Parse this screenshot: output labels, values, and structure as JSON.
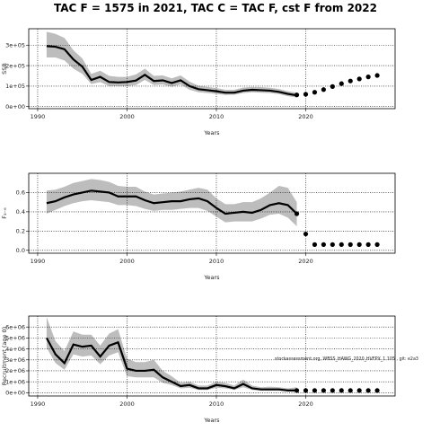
{
  "title": "TAC F = 1575 in 2021, TAC C = TAC F, cst F from 2022",
  "colors": {
    "band": "#bdbdbd",
    "line": "#000000",
    "grid": "#000000",
    "frame": "#000000"
  },
  "chart_data": [
    {
      "type": "line",
      "name": "ssb",
      "xlabel": "Years",
      "ylabel": "SSB",
      "xlim": [
        1989,
        2030
      ],
      "ylim": [
        -10000,
        380000
      ],
      "xticks": [
        1990,
        2000,
        2010,
        2020
      ],
      "xtick_labels": [
        "1990",
        "2000",
        "2010",
        "2020"
      ],
      "yticks": [
        0,
        100000,
        200000,
        300000
      ],
      "ytick_labels": [
        "0e+00",
        "1e+05",
        "2e+05",
        "3e+05"
      ],
      "x": [
        1991,
        1992,
        1993,
        1994,
        1995,
        1996,
        1997,
        1998,
        1999,
        2000,
        2001,
        2002,
        2003,
        2004,
        2005,
        2006,
        2007,
        2008,
        2009,
        2010,
        2011,
        2012,
        2013,
        2014,
        2015,
        2016,
        2017,
        2018,
        2019
      ],
      "values": [
        295000,
        292000,
        280000,
        230000,
        195000,
        130000,
        145000,
        120000,
        118000,
        120000,
        127000,
        155000,
        125000,
        128000,
        115000,
        128000,
        100000,
        85000,
        80000,
        75000,
        68000,
        68000,
        78000,
        82000,
        80000,
        78000,
        72000,
        62000,
        55000
      ],
      "lower": [
        240000,
        240000,
        225000,
        185000,
        160000,
        110000,
        120000,
        100000,
        100000,
        100000,
        105000,
        130000,
        105000,
        108000,
        97000,
        108000,
        82000,
        70000,
        66000,
        62000,
        57000,
        58000,
        66000,
        70000,
        68000,
        66000,
        61000,
        51000,
        44000
      ],
      "upper": [
        365000,
        355000,
        335000,
        275000,
        235000,
        160000,
        175000,
        150000,
        145000,
        145000,
        157000,
        185000,
        150000,
        152000,
        138000,
        152000,
        122000,
        102000,
        96000,
        90000,
        82000,
        82000,
        93000,
        96000,
        95000,
        92000,
        86000,
        75000,
        68000
      ],
      "forecast_x": [
        2019,
        2020,
        2021,
        2022,
        2023,
        2024,
        2025,
        2026,
        2027,
        2028
      ],
      "forecast_values": [
        57000,
        60000,
        70000,
        83000,
        98000,
        112000,
        125000,
        135000,
        145000,
        152000
      ]
    },
    {
      "type": "line",
      "name": "f",
      "xlabel": "Years",
      "ylabel": "F₃₋₆",
      "xlim": [
        1989,
        2030
      ],
      "ylim": [
        -0.03,
        0.8
      ],
      "xticks": [
        1990,
        2000,
        2010,
        2020
      ],
      "xtick_labels": [
        "1990",
        "2000",
        "2010",
        "2020"
      ],
      "yticks": [
        0,
        0.2,
        0.4,
        0.6
      ],
      "ytick_labels": [
        "0.0",
        "0.2",
        "0.4",
        "0.6"
      ],
      "x": [
        1991,
        1992,
        1993,
        1994,
        1995,
        1996,
        1997,
        1998,
        1999,
        2000,
        2001,
        2002,
        2003,
        2004,
        2005,
        2006,
        2007,
        2008,
        2009,
        2010,
        2011,
        2012,
        2013,
        2014,
        2015,
        2016,
        2017,
        2018,
        2019
      ],
      "values": [
        0.49,
        0.51,
        0.55,
        0.58,
        0.6,
        0.62,
        0.61,
        0.6,
        0.56,
        0.56,
        0.56,
        0.52,
        0.49,
        0.5,
        0.51,
        0.51,
        0.53,
        0.54,
        0.51,
        0.44,
        0.38,
        0.39,
        0.4,
        0.39,
        0.42,
        0.47,
        0.49,
        0.47,
        0.38
      ],
      "lower": [
        0.38,
        0.42,
        0.46,
        0.49,
        0.51,
        0.52,
        0.51,
        0.5,
        0.47,
        0.47,
        0.46,
        0.43,
        0.41,
        0.42,
        0.42,
        0.43,
        0.44,
        0.44,
        0.41,
        0.35,
        0.29,
        0.3,
        0.3,
        0.3,
        0.33,
        0.37,
        0.38,
        0.34,
        0.25
      ],
      "upper": [
        0.62,
        0.63,
        0.66,
        0.7,
        0.72,
        0.74,
        0.73,
        0.71,
        0.67,
        0.66,
        0.66,
        0.61,
        0.58,
        0.59,
        0.6,
        0.61,
        0.63,
        0.65,
        0.63,
        0.54,
        0.48,
        0.48,
        0.5,
        0.5,
        0.54,
        0.6,
        0.67,
        0.65,
        0.5
      ],
      "forecast_x": [
        2019,
        2020,
        2021,
        2022,
        2023,
        2024,
        2025,
        2026,
        2027,
        2028
      ],
      "forecast_values": [
        0.38,
        0.17,
        0.06,
        0.06,
        0.06,
        0.06,
        0.06,
        0.06,
        0.06,
        0.06
      ]
    },
    {
      "type": "line",
      "name": "recruitment",
      "xlabel": "Years",
      "ylabel": "Recruitment (age 0)",
      "xlim": [
        1989,
        2030
      ],
      "ylim": [
        -300000,
        7000000
      ],
      "xticks": [
        1990,
        2000,
        2010,
        2020
      ],
      "xtick_labels": [
        "1990",
        "2000",
        "2010",
        "2020"
      ],
      "yticks": [
        0,
        1000000,
        2000000,
        3000000,
        4000000,
        5000000,
        6000000
      ],
      "ytick_labels": [
        "0e+00",
        "1e+06",
        "2e+06",
        "3e+06",
        "4e+06",
        "5e+06",
        "6e+06"
      ],
      "x": [
        1991,
        1992,
        1993,
        1994,
        1995,
        1996,
        1997,
        1998,
        1999,
        2000,
        2001,
        2002,
        2003,
        2004,
        2005,
        2006,
        2007,
        2008,
        2009,
        2010,
        2011,
        2012,
        2013,
        2014,
        2015,
        2016,
        2017,
        2018,
        2019
      ],
      "values": [
        5000000,
        3500000,
        2700000,
        4400000,
        4200000,
        4300000,
        3300000,
        4300000,
        4600000,
        2200000,
        2000000,
        2000000,
        2100000,
        1400000,
        1000000,
        600000,
        700000,
        400000,
        400000,
        700000,
        600000,
        400000,
        800000,
        400000,
        300000,
        300000,
        300000,
        200000,
        200000
      ],
      "lower": [
        4100000,
        2700000,
        2100000,
        3500000,
        3300000,
        3400000,
        2600000,
        3400000,
        3700000,
        1500000,
        1400000,
        1400000,
        1400000,
        900000,
        700000,
        400000,
        450000,
        250000,
        250000,
        450000,
        400000,
        250000,
        500000,
        250000,
        180000,
        180000,
        180000,
        130000,
        120000
      ],
      "upper": [
        6900000,
        4700000,
        3800000,
        5600000,
        5300000,
        5300000,
        4300000,
        5400000,
        5800000,
        3100000,
        2800000,
        2800000,
        3000000,
        2000000,
        1500000,
        900000,
        1000000,
        650000,
        650000,
        1000000,
        900000,
        650000,
        1200000,
        650000,
        500000,
        550000,
        500000,
        400000,
        500000
      ],
      "forecast_x": [
        2019,
        2020,
        2021,
        2022,
        2023,
        2024,
        2025,
        2026,
        2027,
        2028
      ],
      "forecast_values": [
        200000,
        200000,
        200000,
        200000,
        200000,
        200000,
        200000,
        200000,
        200000,
        200000
      ],
      "annotation": "stockassessment.org, WBSS_HAWG_2020_HVFPX_1 105 , git: e2a3"
    }
  ]
}
